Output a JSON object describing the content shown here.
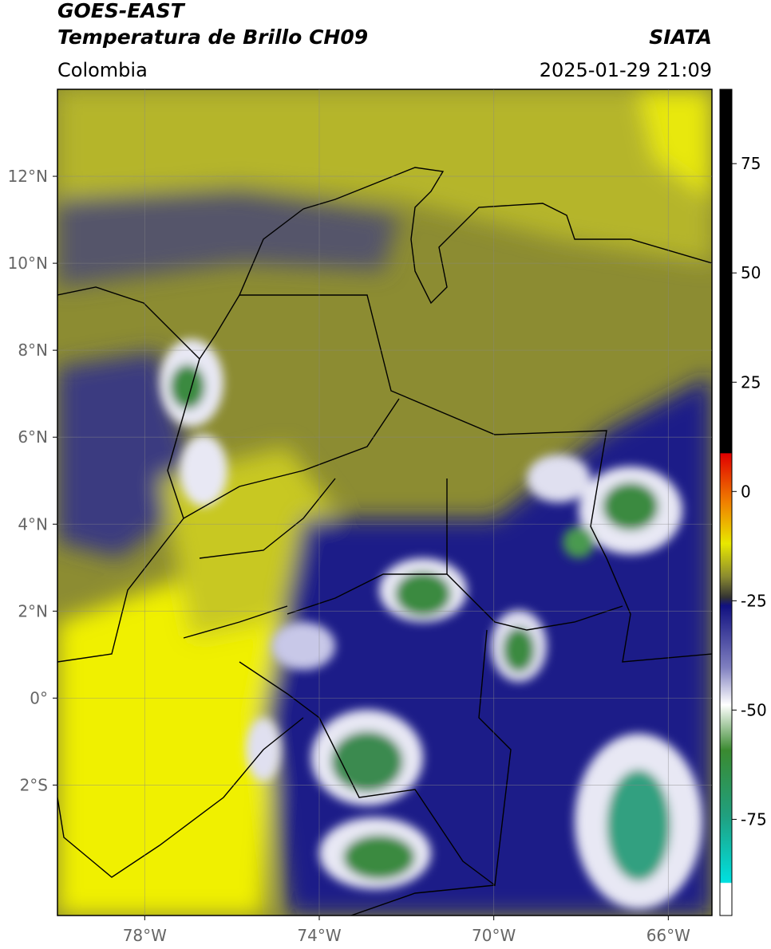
{
  "header": {
    "title_line1": "GOES-EAST",
    "title_line2": "Temperatura de Brillo CH09",
    "source": "SIATA",
    "region": "Colombia",
    "datetime": "2025-01-29 21:09"
  },
  "map": {
    "xlim": [
      -80,
      -65
    ],
    "ylim": [
      -5,
      14
    ],
    "xticks": [
      {
        "value": -78,
        "label": "78°W"
      },
      {
        "value": -74,
        "label": "74°W"
      },
      {
        "value": -70,
        "label": "70°W"
      },
      {
        "value": -66,
        "label": "66°W"
      }
    ],
    "yticks": [
      {
        "value": 12,
        "label": "12°N"
      },
      {
        "value": 10,
        "label": "10°N"
      },
      {
        "value": 8,
        "label": "8°N"
      },
      {
        "value": 6,
        "label": "6°N"
      },
      {
        "value": 4,
        "label": "4°N"
      },
      {
        "value": 2,
        "label": "2°N"
      },
      {
        "value": 0,
        "label": "0°"
      },
      {
        "value": -2,
        "label": "2°S"
      }
    ],
    "colorbar": {
      "lim": [
        -97,
        92
      ],
      "ticks": [
        75,
        50,
        25,
        0,
        -25,
        -50,
        -75
      ]
    }
  }
}
